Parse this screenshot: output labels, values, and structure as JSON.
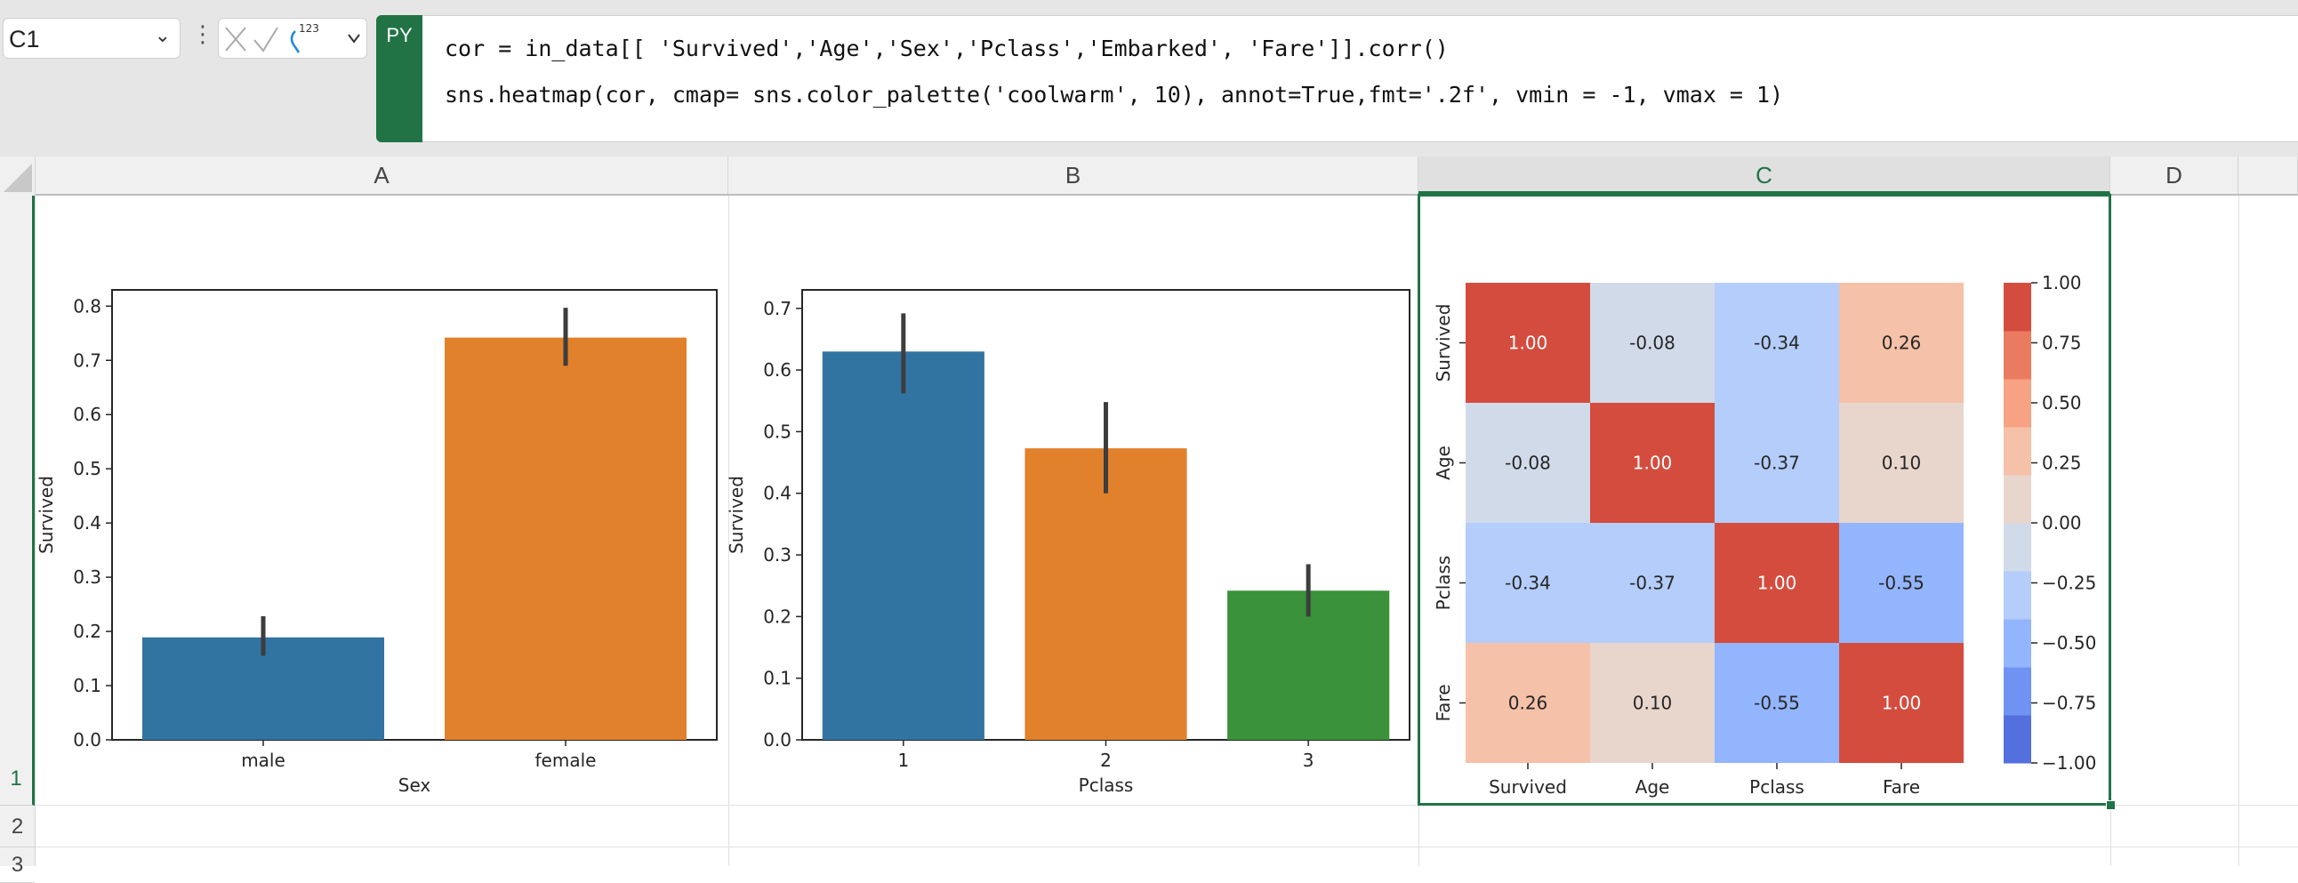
{
  "formula_bar": {
    "name_box": "C1",
    "py_badge": "PY",
    "code_lines": [
      "cor = in_data[[ 'Survived','Age','Sex','Pclass','Embarked', 'Fare']].corr()",
      "sns.heatmap(cor, cmap= sns.color_palette('coolwarm', 10), annot=True,fmt='.2f', vmin = -1, vmax = 1)"
    ],
    "icons": [
      "cancel-icon",
      "confirm-icon",
      "python-output-icon",
      "chevron-down-icon"
    ],
    "output_icon_label": "123"
  },
  "columns": [
    {
      "label": "A",
      "selected": false
    },
    {
      "label": "B",
      "selected": false
    },
    {
      "label": "C",
      "selected": true
    },
    {
      "label": "D",
      "selected": false
    }
  ],
  "rows": [
    "1",
    "2",
    "3"
  ],
  "accent_color": "#217346",
  "chart_data": [
    {
      "type": "bar",
      "xlabel": "Sex",
      "ylabel": "Survived",
      "categories": [
        "male",
        "female"
      ],
      "values": [
        0.189,
        0.742
      ],
      "error_low": [
        0.155,
        0.69
      ],
      "error_high": [
        0.228,
        0.797
      ],
      "colors": [
        "#3274a1",
        "#e1812c"
      ],
      "ylim": [
        0,
        0.83
      ],
      "yticks": [
        "0.0",
        "0.1",
        "0.2",
        "0.3",
        "0.4",
        "0.5",
        "0.6",
        "0.7",
        "0.8"
      ],
      "grid": false
    },
    {
      "type": "bar",
      "xlabel": "Pclass",
      "ylabel": "Survived",
      "categories": [
        "1",
        "2",
        "3"
      ],
      "values": [
        0.63,
        0.473,
        0.242
      ],
      "error_low": [
        0.562,
        0.4,
        0.2
      ],
      "error_high": [
        0.692,
        0.548,
        0.285
      ],
      "colors": [
        "#3274a1",
        "#e1812c",
        "#3a923a"
      ],
      "ylim": [
        0,
        0.73
      ],
      "yticks": [
        "0.0",
        "0.1",
        "0.2",
        "0.3",
        "0.4",
        "0.5",
        "0.6",
        "0.7"
      ],
      "grid": false
    },
    {
      "type": "heatmap",
      "labels": [
        "Survived",
        "Age",
        "Pclass",
        "Fare"
      ],
      "matrix": [
        [
          1.0,
          -0.08,
          -0.34,
          0.26
        ],
        [
          -0.08,
          1.0,
          -0.37,
          0.1
        ],
        [
          -0.34,
          -0.37,
          1.0,
          -0.55
        ],
        [
          0.26,
          0.1,
          -0.55,
          1.0
        ]
      ],
      "annotations": [
        [
          "1.00",
          "-0.08",
          "-0.34",
          "0.26"
        ],
        [
          "-0.08",
          "1.00",
          "-0.37",
          "0.10"
        ],
        [
          "-0.34",
          "-0.37",
          "1.00",
          "-0.55"
        ],
        [
          "0.26",
          "0.10",
          "-0.55",
          "1.00"
        ]
      ],
      "vmin": -1,
      "vmax": 1,
      "colormap": "coolwarm",
      "palette": [
        "#5470de",
        "#7093f3",
        "#93b5fe",
        "#b4cdfa",
        "#d1dae9",
        "#e8d6cc",
        "#f5c1a8",
        "#f6a283",
        "#ea7b60",
        "#d44c3e"
      ],
      "colorbar_ticks": [
        "1.00",
        "0.75",
        "0.50",
        "0.25",
        "0.00",
        "−0.25",
        "−0.50",
        "−0.75",
        "−1.00"
      ],
      "colorbar_tick_values": [
        1,
        0.75,
        0.5,
        0.25,
        0,
        -0.25,
        -0.5,
        -0.75,
        -1
      ]
    }
  ]
}
